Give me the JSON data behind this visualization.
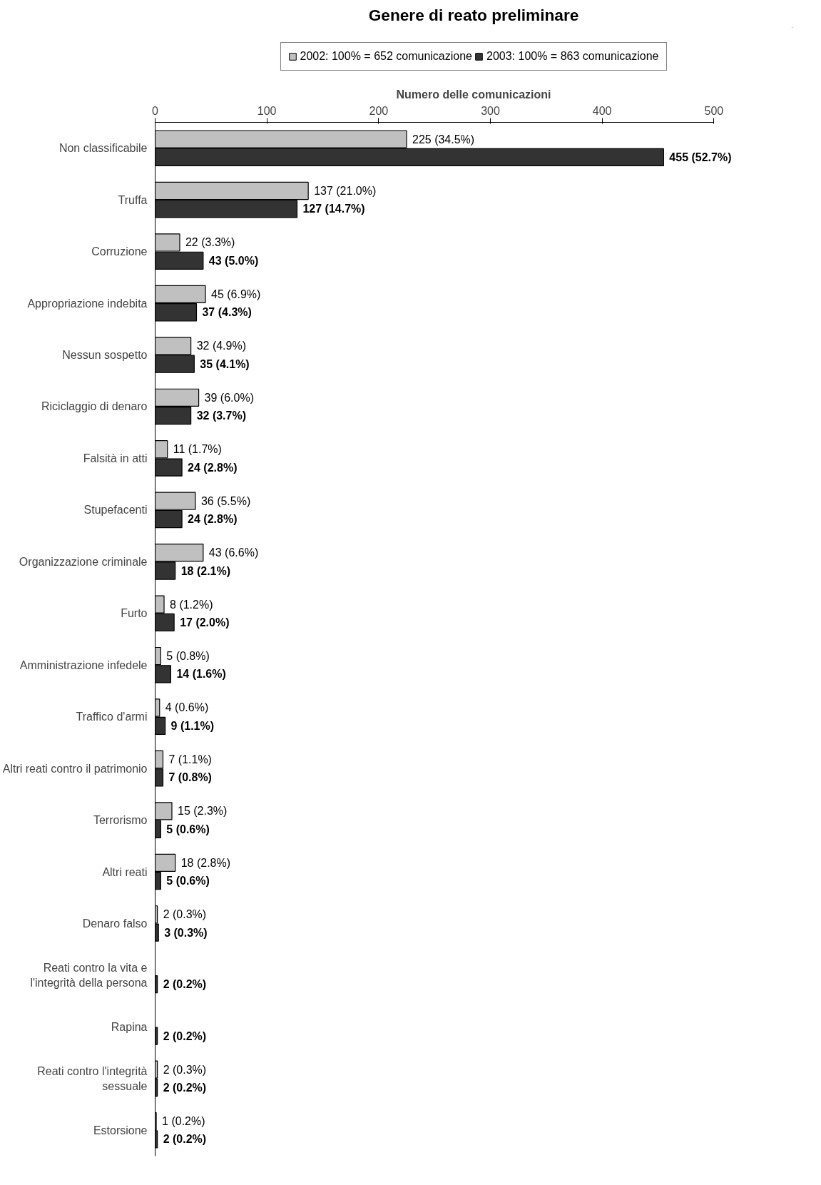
{
  "chart_data": {
    "type": "bar",
    "orientation": "horizontal",
    "title": "Genere di reato preliminare",
    "xlabel": "Numero delle comunicazioni",
    "categories": [
      "Non classificabile",
      "Truffa",
      "Corruzione",
      "Appropriazione indebita",
      "Nessun sospetto",
      "Riciclaggio di denaro",
      "Falsità in atti",
      "Stupefacenti",
      "Organizzazione criminale",
      "Furto",
      "Amministrazione infedele",
      "Traffico d'armi",
      "Altri reati contro il patrimonio",
      "Terrorismo",
      "Altri reati",
      "Denaro falso",
      "Reati contro la vita e l'integrità della persona",
      "Rapina",
      "Reati contro l'integrità sessuale",
      "Estorsione"
    ],
    "series": [
      {
        "name": "2002: 100% = 652 comunicazione",
        "color": "#c0c0c0",
        "values": [
          225,
          137,
          22,
          45,
          32,
          39,
          11,
          36,
          43,
          8,
          5,
          4,
          7,
          15,
          18,
          2,
          null,
          null,
          2,
          1
        ],
        "value_labels": [
          "225 (34.5%)",
          "137 (21.0%)",
          "22 (3.3%)",
          "45 (6.9%)",
          "32 (4.9%)",
          "39 (6.0%)",
          "11 (1.7%)",
          "36 (5.5%)",
          "43 (6.6%)",
          "8 (1.2%)",
          "5 (0.8%)",
          "4 (0.6%)",
          "7 (1.1%)",
          "15 (2.3%)",
          "18 (2.8%)",
          "2 (0.3%)",
          null,
          null,
          "2 (0.3%)",
          "1 (0.2%)"
        ]
      },
      {
        "name": "2003: 100% = 863 comunicazione",
        "color": "#333333",
        "values": [
          455,
          127,
          43,
          37,
          35,
          32,
          24,
          24,
          18,
          17,
          14,
          9,
          7,
          5,
          5,
          3,
          2,
          2,
          2,
          2
        ],
        "value_labels": [
          "455 (52.7%)",
          "127 (14.7%)",
          "43 (5.0%)",
          "37 (4.3%)",
          "35 (4.1%)",
          "32 (3.7%)",
          "24 (2.8%)",
          "24 (2.8%)",
          "18 (2.1%)",
          "17 (2.0%)",
          "14 (1.6%)",
          "9 (1.1%)",
          "7 (0.8%)",
          "5 (0.6%)",
          "5 (0.6%)",
          "3 (0.3%)",
          "2 (0.2%)",
          "2 (0.2%)",
          "2 (0.2%)",
          "2 (0.2%)"
        ]
      }
    ],
    "xlim": [
      0,
      500
    ],
    "xticks": [
      0,
      100,
      200,
      300,
      400,
      500
    ],
    "legend": "top",
    "grid": false
  }
}
